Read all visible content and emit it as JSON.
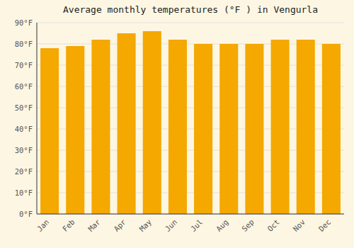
{
  "chart_data": {
    "type": "bar",
    "title": "Average monthly temperatures (°F ) in Vengurla",
    "categories": [
      "Jan",
      "Feb",
      "Mar",
      "Apr",
      "May",
      "Jun",
      "Jul",
      "Aug",
      "Sep",
      "Oct",
      "Nov",
      "Dec"
    ],
    "values": [
      78,
      79,
      82,
      85,
      86,
      82,
      80,
      80,
      80,
      82,
      82,
      80
    ],
    "color": "#F4A800",
    "ylim": [
      0,
      90
    ],
    "yticks": [
      {
        "value": 0,
        "label": "0°F"
      },
      {
        "value": 10,
        "label": "10°F"
      },
      {
        "value": 20,
        "label": "20°F"
      },
      {
        "value": 30,
        "label": "30°F"
      },
      {
        "value": 40,
        "label": "40°F"
      },
      {
        "value": 50,
        "label": "50°F"
      },
      {
        "value": 60,
        "label": "60°F"
      },
      {
        "value": 70,
        "label": "70°F"
      },
      {
        "value": 80,
        "label": "80°F"
      },
      {
        "value": 90,
        "label": "90°F"
      }
    ],
    "grid": true
  }
}
